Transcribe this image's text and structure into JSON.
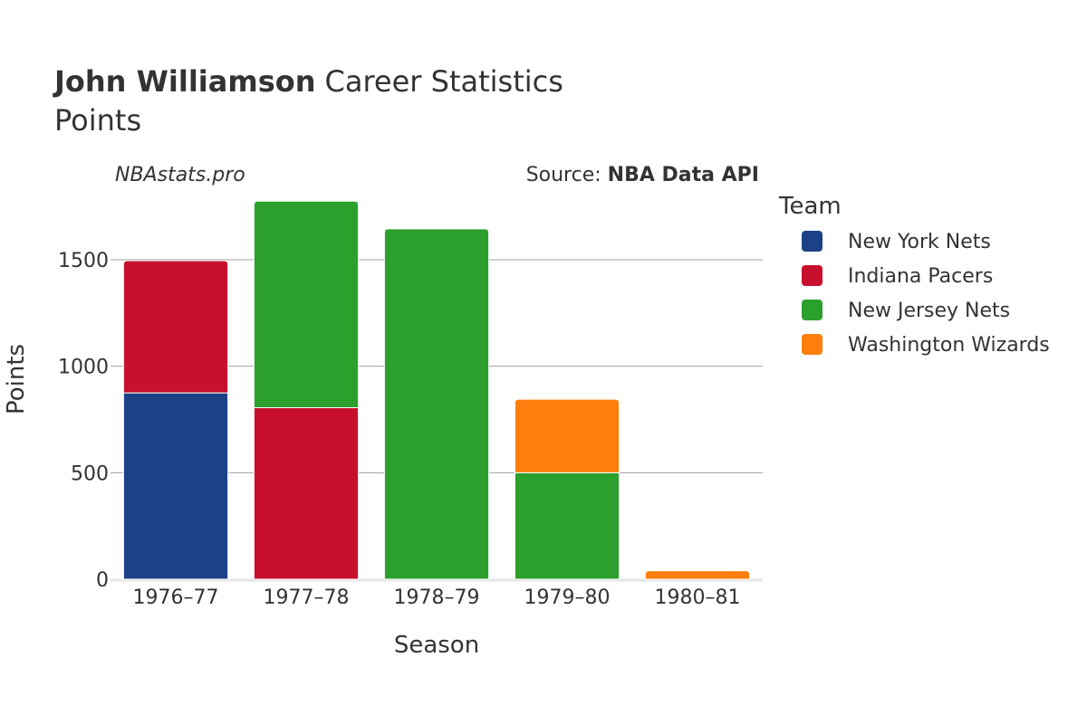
{
  "chart_data": {
    "type": "bar",
    "stacked": true,
    "title": {
      "player": "John Williamson",
      "suffix": "Career Statistics",
      "subtitle": "Points"
    },
    "watermark": "NBAstats.pro",
    "source": {
      "prefix": "Source: ",
      "name": "NBA Data API"
    },
    "xlabel": "Season",
    "ylabel": "Points",
    "ylim": [
      0,
      1850
    ],
    "yticks": [
      0,
      500,
      1000,
      1500
    ],
    "categories": [
      "1976–77",
      "1977–78",
      "1978–79",
      "1979–80",
      "1980–81"
    ],
    "legend": {
      "title": "Team",
      "position": "right"
    },
    "series": [
      {
        "name": "New York Nets",
        "color": "#1c4187",
        "values": [
          875,
          0,
          0,
          0,
          0
        ]
      },
      {
        "name": "Indiana Pacers",
        "color": "#c8102e",
        "values": [
          620,
          805,
          0,
          0,
          0
        ]
      },
      {
        "name": "New Jersey Nets",
        "color": "#2ca02c",
        "values": [
          0,
          970,
          1645,
          500,
          0
        ]
      },
      {
        "name": "Washington Wizards",
        "color": "#ff7f0e",
        "values": [
          0,
          0,
          0,
          345,
          40
        ]
      }
    ]
  }
}
